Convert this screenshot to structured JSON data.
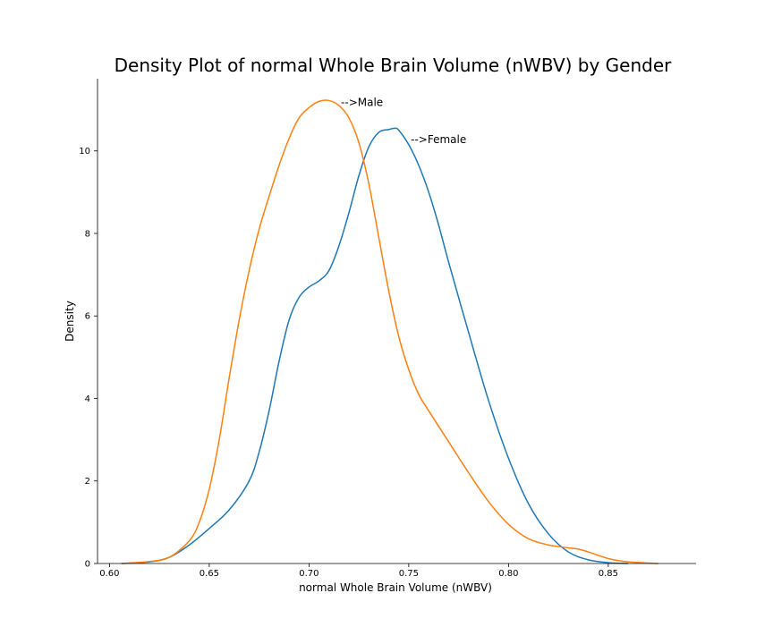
{
  "chart_data": {
    "type": "line",
    "title": "Density Plot of normal Whole Brain Volume (nWBV)  by Gender",
    "xlabel": "normal Whole Brain Volume (nWBV)",
    "ylabel": "Density",
    "xlim": [
      0.594,
      0.894
    ],
    "ylim": [
      0,
      11.75
    ],
    "xticks": [
      0.6,
      0.65,
      0.7,
      0.75,
      0.8,
      0.85
    ],
    "xtick_labels": [
      "0.60",
      "0.65",
      "0.70",
      "0.75",
      "0.80",
      "0.85"
    ],
    "yticks": [
      0,
      2,
      4,
      6,
      8,
      10
    ],
    "ytick_labels": [
      "0",
      "2",
      "4",
      "6",
      "8",
      "10"
    ],
    "grid": false,
    "series": [
      {
        "color": "#1f77b4",
        "x": [
          0.606,
          0.62,
          0.63,
          0.64,
          0.65,
          0.66,
          0.67,
          0.675,
          0.68,
          0.685,
          0.69,
          0.695,
          0.7,
          0.705,
          0.71,
          0.715,
          0.72,
          0.725,
          0.73,
          0.735,
          0.74,
          0.743,
          0.745,
          0.75,
          0.755,
          0.76,
          0.765,
          0.77,
          0.78,
          0.79,
          0.8,
          0.81,
          0.82,
          0.83,
          0.84,
          0.85,
          0.86
        ],
        "y": [
          0.0,
          0.04,
          0.15,
          0.45,
          0.85,
          1.3,
          2.0,
          2.7,
          3.7,
          4.9,
          5.9,
          6.45,
          6.7,
          6.85,
          7.1,
          7.7,
          8.5,
          9.4,
          10.1,
          10.45,
          10.52,
          10.55,
          10.5,
          10.15,
          9.65,
          9.0,
          8.2,
          7.3,
          5.6,
          3.95,
          2.55,
          1.45,
          0.72,
          0.28,
          0.09,
          0.02,
          0.0
        ]
      },
      {
        "color": "#ff7f0e",
        "x": [
          0.606,
          0.62,
          0.63,
          0.64,
          0.645,
          0.65,
          0.655,
          0.66,
          0.665,
          0.67,
          0.675,
          0.68,
          0.685,
          0.69,
          0.695,
          0.7,
          0.705,
          0.71,
          0.715,
          0.72,
          0.725,
          0.73,
          0.735,
          0.74,
          0.745,
          0.75,
          0.755,
          0.76,
          0.77,
          0.78,
          0.79,
          0.8,
          0.81,
          0.82,
          0.83,
          0.835,
          0.84,
          0.85,
          0.86,
          0.875
        ],
        "y": [
          0.0,
          0.05,
          0.15,
          0.55,
          1.0,
          1.8,
          3.0,
          4.5,
          5.9,
          7.1,
          8.1,
          8.9,
          9.65,
          10.3,
          10.8,
          11.05,
          11.2,
          11.22,
          11.1,
          10.8,
          10.2,
          9.2,
          7.9,
          6.6,
          5.5,
          4.7,
          4.1,
          3.7,
          2.95,
          2.2,
          1.5,
          0.95,
          0.6,
          0.45,
          0.38,
          0.35,
          0.28,
          0.12,
          0.04,
          0.0
        ]
      }
    ],
    "annotations": [
      {
        "text": "-->Male",
        "x": 0.716,
        "y": 11.18
      },
      {
        "text": "-->Female",
        "x": 0.751,
        "y": 10.28
      }
    ]
  }
}
